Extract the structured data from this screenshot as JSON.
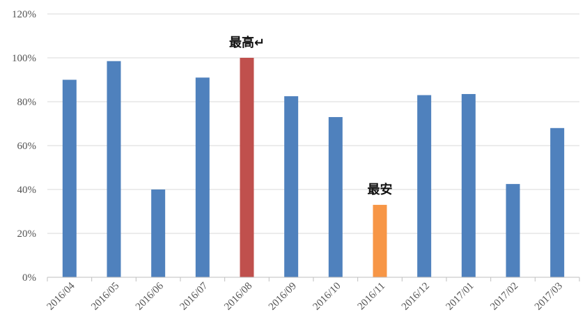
{
  "chart_data": {
    "type": "bar",
    "title": "",
    "xlabel": "",
    "ylabel": "",
    "ylim": [
      0,
      120
    ],
    "y_ticks": [
      "0%",
      "20%",
      "40%",
      "60%",
      "80%",
      "100%",
      "120%"
    ],
    "y_tick_values": [
      0,
      20,
      40,
      60,
      80,
      100,
      120
    ],
    "grid": true,
    "legend": "none",
    "categories": [
      "2016/04",
      "2016/05",
      "2016/06",
      "2016/07",
      "2016/08",
      "2016/09",
      "2016/10",
      "2016/11",
      "2016/12",
      "2017/01",
      "2017/02",
      "2017/03"
    ],
    "values": [
      90,
      98.5,
      40,
      91,
      100,
      82.5,
      73,
      33,
      83,
      83.5,
      42.5,
      68
    ],
    "colors": [
      "#4f81bd",
      "#4f81bd",
      "#4f81bd",
      "#4f81bd",
      "#c0504d",
      "#4f81bd",
      "#4f81bd",
      "#f79646",
      "#4f81bd",
      "#4f81bd",
      "#4f81bd",
      "#4f81bd"
    ],
    "annotations": [
      {
        "category": "2016/08",
        "text": "最高↵"
      },
      {
        "category": "2016/11",
        "text": "最安"
      }
    ]
  }
}
